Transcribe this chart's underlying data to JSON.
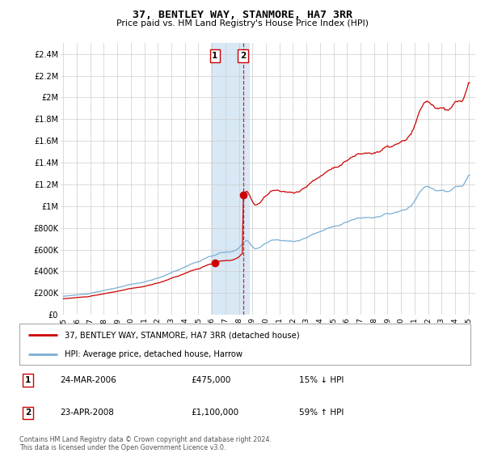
{
  "title": "37, BENTLEY WAY, STANMORE, HA7 3RR",
  "subtitle": "Price paid vs. HM Land Registry's House Price Index (HPI)",
  "legend_line1": "37, BENTLEY WAY, STANMORE, HA7 3RR (detached house)",
  "legend_line2": "HPI: Average price, detached house, Harrow",
  "annotation1_date": "24-MAR-2006",
  "annotation1_price": "£475,000",
  "annotation1_hpi": "15% ↓ HPI",
  "annotation2_date": "23-APR-2008",
  "annotation2_price": "£1,100,000",
  "annotation2_hpi": "59% ↑ HPI",
  "footnote": "Contains HM Land Registry data © Crown copyright and database right 2024.\nThis data is licensed under the Open Government Licence v3.0.",
  "line1_color": "#cc0000",
  "line2_color": "#7aafd4",
  "shade_color": "#d8e8f5",
  "marker_color": "#cc0000",
  "ylim": [
    0,
    2500000
  ],
  "yticks": [
    0,
    200000,
    400000,
    600000,
    800000,
    1000000,
    1200000,
    1400000,
    1600000,
    1800000,
    2000000,
    2200000,
    2400000
  ],
  "ytick_labels": [
    "£0",
    "£200K",
    "£400K",
    "£600K",
    "£800K",
    "£1M",
    "£1.2M",
    "£1.4M",
    "£1.6M",
    "£1.8M",
    "£2M",
    "£2.2M",
    "£2.4M"
  ],
  "transaction1_year": 2006.22,
  "transaction1_value": 475000,
  "transaction2_year": 2008.3,
  "transaction2_value": 1100000,
  "shade_x1": 2005.92,
  "shade_x2": 2008.75,
  "xmin": 1994.8,
  "xmax": 2025.5
}
